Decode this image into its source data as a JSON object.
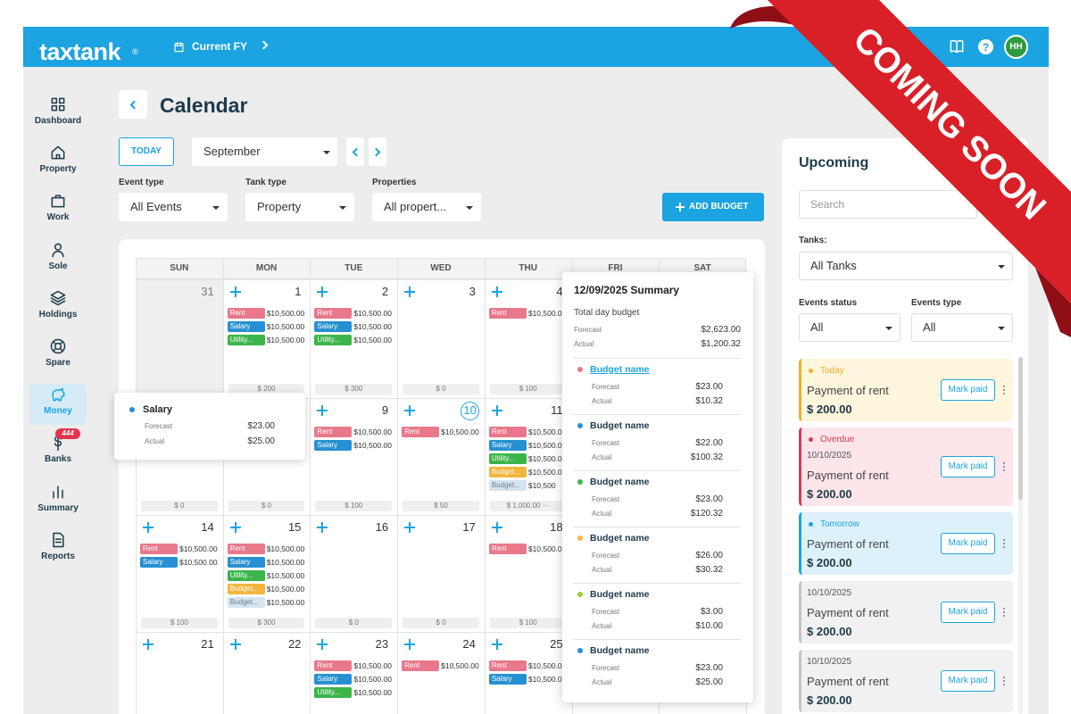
{
  "header": {
    "logo": "taxtank",
    "logo_mark": "®",
    "fy": "Current FY",
    "help": "?",
    "avatar": "HH"
  },
  "ribbon": {
    "text": "COMING SOON"
  },
  "sidebar": {
    "items": [
      "Dashboard",
      "Property",
      "Work",
      "Sole",
      "Holdings",
      "Spare",
      "Money",
      "Banks",
      "Summary",
      "Reports"
    ],
    "active": 6,
    "badge": "444",
    "badge_item": 7
  },
  "page": {
    "title": "Calendar",
    "today": "TODAY",
    "month": "September",
    "add_budget": "ADD BUDGET",
    "filters": [
      {
        "label": "Event type",
        "value": "All Events"
      },
      {
        "label": "Tank type",
        "value": "Property"
      },
      {
        "label": "Properties",
        "value": "All propert..."
      }
    ]
  },
  "calendar": {
    "weekdays": [
      "SUN",
      "MON",
      "TUE",
      "WED",
      "THU",
      "FRI",
      "SAT"
    ],
    "weeks": [
      [
        {
          "day": "31",
          "past": true,
          "events": []
        },
        {
          "day": "1",
          "events": [
            {
              "tag": "Rent",
              "amount": "$10,500.00",
              "color": "#e9788b"
            },
            {
              "tag": "Salary",
              "amount": "$10,500.00",
              "color": "#2690d2"
            },
            {
              "tag": "Utility...",
              "amount": "$10,500.00",
              "color": "#3bb54a"
            }
          ],
          "total": "$ 200"
        },
        {
          "day": "2",
          "events": [
            {
              "tag": "Rent",
              "amount": "$10,500.00",
              "color": "#e9788b"
            },
            {
              "tag": "Salary",
              "amount": "$10,500.00",
              "color": "#2690d2"
            },
            {
              "tag": "Utility...",
              "amount": "$10,500.00",
              "color": "#3bb54a"
            }
          ],
          "total": "$ 300"
        },
        {
          "day": "3",
          "events": [],
          "total": "$ 0"
        },
        {
          "day": "4",
          "events": [
            {
              "tag": "Rent",
              "amount": "$10,500.00",
              "color": "#e9788b"
            }
          ],
          "total": "$ 100"
        },
        null,
        null
      ],
      [
        {
          "events": [],
          "total": "$ 0"
        },
        {
          "events": [],
          "total": "$ 0"
        },
        {
          "day": "9",
          "events": [
            {
              "tag": "Rent",
              "amount": "$10,500.00",
              "color": "#e9788b"
            },
            {
              "tag": "Salary",
              "amount": "$10,500.00",
              "color": "#2690d2"
            }
          ],
          "total": "$ 100"
        },
        {
          "day": "10",
          "today": true,
          "events": [
            {
              "tag": "Rent",
              "amount": "$10,500.00",
              "color": "#e9788b"
            }
          ],
          "total": "$ 50"
        },
        {
          "day": "11",
          "events": [
            {
              "tag": "Rent",
              "amount": "$10,500.00",
              "color": "#e9788b"
            },
            {
              "tag": "Salary",
              "amount": "$10,500.00",
              "color": "#2690d2"
            },
            {
              "tag": "Utility...",
              "amount": "$10,500.00",
              "color": "#3bb54a"
            },
            {
              "tag": "Budget...",
              "amount": "$10,500.00",
              "color": "#f2b63c"
            },
            {
              "tag": "Budget...",
              "amount": "$10,500",
              "color": "#d4e4f1"
            }
          ],
          "total": "$ 1,000.00 ···"
        },
        null,
        null
      ],
      [
        {
          "day": "14",
          "events": [
            {
              "tag": "Rent",
              "amount": "$10,500.00",
              "color": "#e9788b"
            },
            {
              "tag": "Salary",
              "amount": "$10,500.00",
              "color": "#2690d2"
            }
          ],
          "total": "$ 100"
        },
        {
          "day": "15",
          "events": [
            {
              "tag": "Rent",
              "amount": "$10,500.00",
              "color": "#e9788b"
            },
            {
              "tag": "Salary",
              "amount": "$10,500.00",
              "color": "#2690d2"
            },
            {
              "tag": "Utility...",
              "amount": "$10,500.00",
              "color": "#3bb54a"
            },
            {
              "tag": "Budget...",
              "amount": "$10,500.00",
              "color": "#f2b63c"
            },
            {
              "tag": "Budget...",
              "amount": "$10,500.00",
              "color": "#d4e4f1"
            }
          ],
          "total": "$ 300"
        },
        {
          "day": "16",
          "events": [],
          "total": "$ 0"
        },
        {
          "day": "17",
          "events": [],
          "total": "$ 0"
        },
        {
          "day": "18",
          "events": [
            {
              "tag": "Rent",
              "amount": "$10,500.00",
              "color": "#e9788b"
            }
          ],
          "total": "$ 100"
        },
        null,
        null
      ],
      [
        {
          "day": "21",
          "events": []
        },
        {
          "day": "22",
          "events": []
        },
        {
          "day": "23",
          "events": [
            {
              "tag": "Rent",
              "amount": "$10,500.00",
              "color": "#e9788b"
            },
            {
              "tag": "Salary",
              "amount": "$10,500.00",
              "color": "#2690d2"
            },
            {
              "tag": "Utility...",
              "amount": "$10,500.00",
              "color": "#3bb54a"
            }
          ]
        },
        {
          "day": "24",
          "events": [
            {
              "tag": "Rent",
              "amount": "$10,500.00",
              "color": "#e9788b"
            }
          ]
        },
        {
          "day": "25",
          "events": [
            {
              "tag": "Rent",
              "amount": "$10,500.00",
              "color": "#e9788b"
            },
            {
              "tag": "Salary",
              "amount": "$10,500.00",
              "color": "#2690d2"
            }
          ]
        },
        null,
        null
      ]
    ]
  },
  "salary_popup": {
    "title": "Salary",
    "color": "#2690d2",
    "rows": [
      {
        "label": "Forecast",
        "value": "$23.00"
      },
      {
        "label": "Actual",
        "value": "$25.00"
      }
    ]
  },
  "summary_popup": {
    "title": "12/09/2025 Summary",
    "subtitle": "Total day budget",
    "rows": [
      {
        "label": "Forecast",
        "value": "$2,623.00"
      },
      {
        "label": "Actual",
        "value": "$1,200.32"
      }
    ],
    "budgets": [
      {
        "name": "Budget name",
        "link": true,
        "color": "#e9788b",
        "forecast_label": "Forecast",
        "forecast": "$23.00",
        "actual_label": "Actual",
        "actual": "$10.32"
      },
      {
        "name": "Budget name",
        "color": "#2690d2",
        "forecast_label": "Forecast",
        "forecast": "$22.00",
        "actual_label": "Actual",
        "actual": "$100.32"
      },
      {
        "name": "Budget name",
        "color": "#3bb54a",
        "forecast_label": "Forecast",
        "forecast": "$23.00",
        "actual_label": "Actual",
        "actual": "$120.32"
      },
      {
        "name": "Budget name",
        "color": "#f2b63c",
        "forecast_label": "Forecast",
        "forecast": "$26.00",
        "actual_label": "Actual",
        "actual": "$30.32"
      },
      {
        "name": "Budget name",
        "color": "#9acd32",
        "forecast_label": "Forecast",
        "forecast": "$3.00",
        "actual_label": "Actual",
        "actual": "$10.00"
      },
      {
        "name": "Budget name",
        "color": "#2690d2",
        "forecast_label": "Forecast",
        "forecast": "$23.00",
        "actual_label": "Actual",
        "actual": "$25.00"
      }
    ]
  },
  "upcoming": {
    "title": "Upcoming",
    "search": "Search",
    "tanks_label": "Tanks:",
    "tanks_value": "All Tanks",
    "status_label": "Events status",
    "status_value": "All",
    "type_label": "Events type",
    "type_value": "All",
    "cards": [
      {
        "status": "Today",
        "title": "Payment of rent",
        "amount": "$ 200.00",
        "button": "Mark paid",
        "color": "#eeb02a",
        "bg": "#fdf5dc"
      },
      {
        "status": "Overdue",
        "date": "10/10/2025",
        "title": "Payment of rent",
        "amount": "$ 200.00",
        "button": "Mark paid",
        "color": "#d83a52",
        "bg": "#fde5ea"
      },
      {
        "status": "Tomorrow",
        "title": "Payment of rent",
        "amount": "$ 200.00",
        "button": "Mark paid",
        "color": "#1ca3e1",
        "bg": "#ddf1fb"
      },
      {
        "date": "10/10/2025",
        "title": "Payment of rent",
        "amount": "$ 200.00",
        "button": "Mark paid",
        "color": "#c4c4c4",
        "bg": "#f1f1f1"
      },
      {
        "date": "10/10/2025",
        "title": "Payment of rent",
        "amount": "$ 200.00",
        "button": "Mark paid",
        "color": "#c4c4c4",
        "bg": "#f1f1f1"
      }
    ]
  }
}
